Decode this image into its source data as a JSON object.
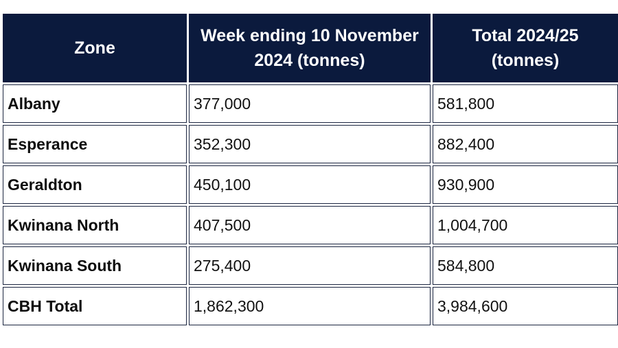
{
  "table": {
    "headers": [
      "Zone",
      "Week ending 10 November 2024 (tonnes)",
      "Total 2024/25 (tonnes)"
    ],
    "rows": [
      {
        "zone": "Albany",
        "week": "377,000",
        "total": "581,800"
      },
      {
        "zone": "Esperance",
        "week": "352,300",
        "total": "882,400"
      },
      {
        "zone": "Geraldton",
        "week": "450,100",
        "total": "930,900"
      },
      {
        "zone": "Kwinana North",
        "week": "407,500",
        "total": "1,004,700"
      },
      {
        "zone": "Kwinana South",
        "week": "275,400",
        "total": "584,800"
      },
      {
        "zone": "CBH Total",
        "week": "1,862,300",
        "total": "3,984,600"
      }
    ]
  },
  "colors": {
    "header_background": "#0b1a3d",
    "header_text": "#ffffff",
    "cell_border": "#1b2540"
  }
}
